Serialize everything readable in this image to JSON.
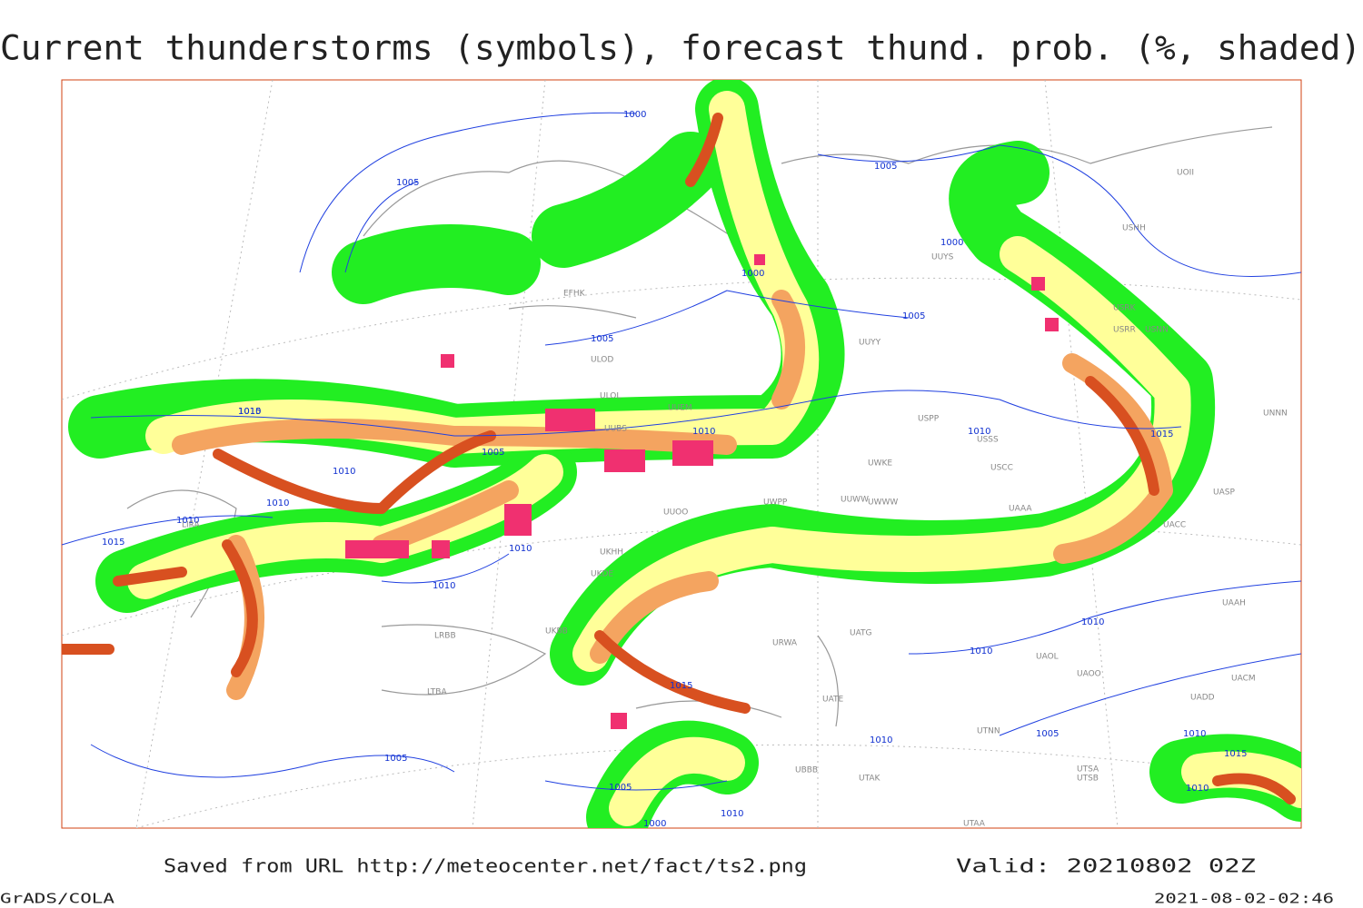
{
  "header": {
    "title": "Current thunderstorms (symbols), forecast thund. prob. (%, shaded)"
  },
  "footer": {
    "source": "Saved from URL http://meteocenter.net/fact/ts2.png",
    "valid": "Valid: 20210802 02Z",
    "software": "GrADS/COLA",
    "timestamp": "2021-08-02-02:46"
  },
  "isobar_labels": [
    "1000",
    "1005",
    "1005",
    "1000",
    "1000",
    "1005",
    "1005",
    "1010",
    "1015",
    "1005",
    "1010",
    "1010",
    "1010",
    "1015",
    "1010",
    "1010",
    "1010",
    "1010",
    "1015",
    "1010",
    "1005",
    "1010",
    "1010",
    "1005",
    "1015",
    "1010",
    "1000",
    "1005",
    "1010",
    "1015",
    "1010"
  ],
  "station_labels": [
    "EFHK",
    "ULOD",
    "ULOL",
    "UUEM",
    "UUBS",
    "UUWW",
    "UWPP",
    "UWKE",
    "UWWW",
    "USPP",
    "USSS",
    "USCC",
    "UUYY",
    "USRK",
    "USNN",
    "USRR",
    "UNNN",
    "UASP",
    "UAAH",
    "UACC",
    "UATG",
    "URWA",
    "UATE",
    "UTNN",
    "UTAA",
    "UKBB",
    "LRBB",
    "LTBA",
    "LIRA",
    "UKHH",
    "UKDE",
    "UUOO",
    "UUYS",
    "USHH",
    "UOII",
    "UAOL",
    "UAOO",
    "UTSA",
    "UTSB",
    "UTAK",
    "UBBB",
    "UAAA",
    "UACM",
    "UADD"
  ]
}
